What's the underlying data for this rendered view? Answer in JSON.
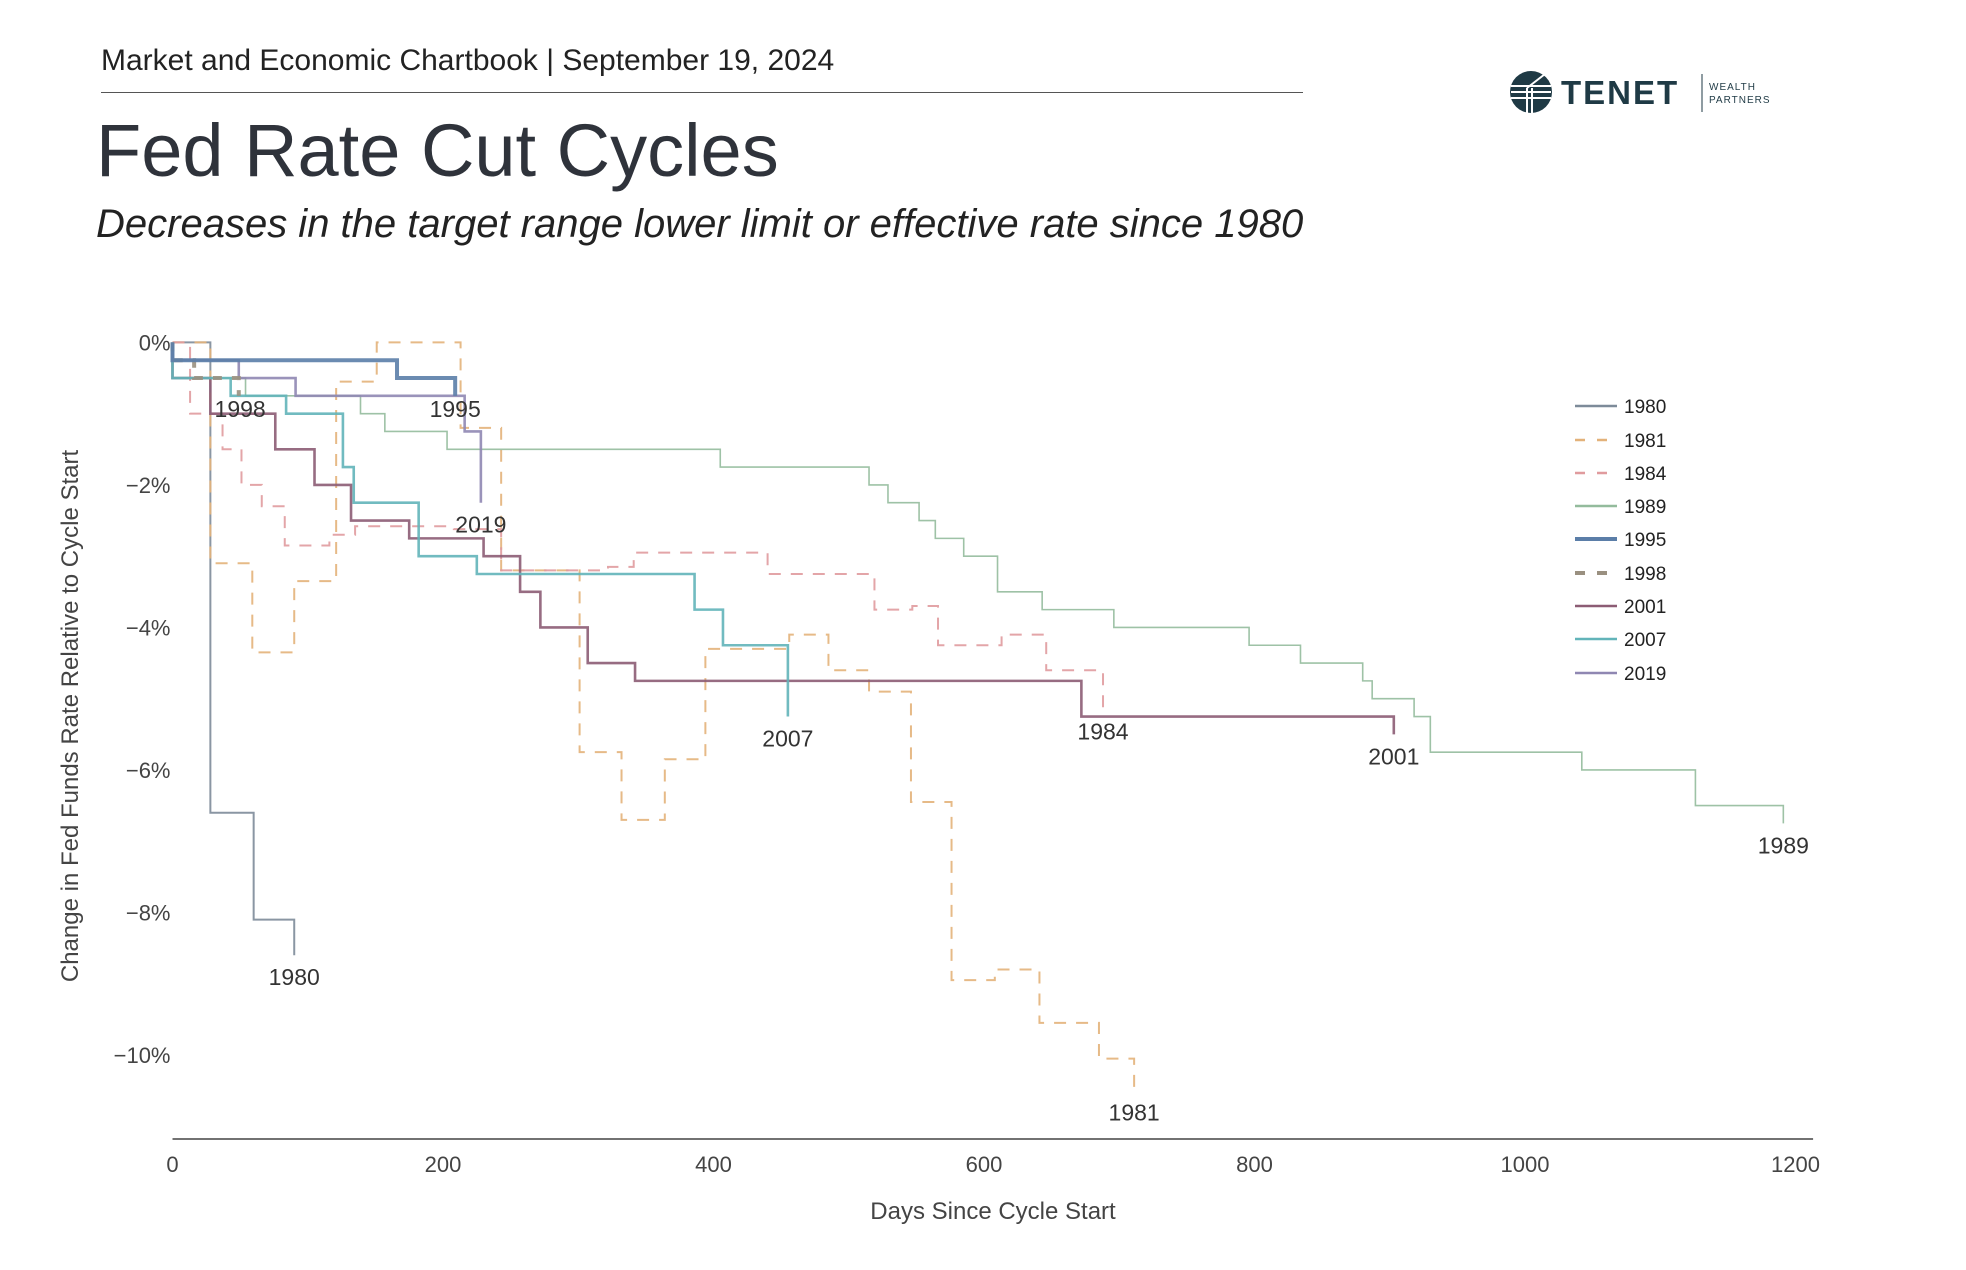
{
  "header": {
    "top_line": "Market and Economic Chartbook | September 19, 2024",
    "title": "Fed Rate Cut Cycles",
    "subtitle": "Decreases in the target range lower limit or effective rate since 1980",
    "logo_text": "TENET",
    "logo_sub_1": "WEALTH",
    "logo_sub_2": "PARTNERS",
    "logo_color": "#1f3a45"
  },
  "chart_data": {
    "type": "line",
    "step": true,
    "xlabel": "Days Since Cycle Start",
    "ylabel": "Change in Fed Funds Rate Relative to Cycle Start",
    "xlim": [
      0,
      1213
    ],
    "ylim": [
      -11.2,
      0.3
    ],
    "xticks": [
      0,
      200,
      400,
      600,
      800,
      1000,
      1200
    ],
    "xtick_labels": [
      "0",
      "200",
      "400",
      "600",
      "800",
      "1000",
      "1200"
    ],
    "yticks": [
      0,
      -2,
      -4,
      -6,
      -8,
      -10
    ],
    "ytick_labels": [
      "0%",
      "−2%",
      "−4%",
      "−6%",
      "−8%",
      "−10%"
    ],
    "grid": false,
    "legend_position": "right",
    "series": [
      {
        "name": "1980",
        "color": "#7d8b99",
        "dash": false,
        "width": 2,
        "points": [
          [
            0,
            0
          ],
          [
            28,
            -6.6
          ],
          [
            60,
            -8.1
          ],
          [
            90,
            -8.6
          ]
        ]
      },
      {
        "name": "1981",
        "color": "#e3b27a",
        "dash": true,
        "width": 2,
        "points": [
          [
            0,
            0
          ],
          [
            28,
            -3.1
          ],
          [
            59,
            -4.35
          ],
          [
            90,
            -3.35
          ],
          [
            121,
            -0.55
          ],
          [
            151,
            0
          ],
          [
            213,
            -1.2
          ],
          [
            243,
            -3.2
          ],
          [
            301,
            -5.75
          ],
          [
            332,
            -6.7
          ],
          [
            364,
            -5.85
          ],
          [
            394,
            -4.3
          ],
          [
            456,
            -4.1
          ],
          [
            485,
            -4.6
          ],
          [
            515,
            -4.9
          ],
          [
            546,
            -6.45
          ],
          [
            576,
            -8.95
          ],
          [
            608,
            -8.8
          ],
          [
            641,
            -9.55
          ],
          [
            685,
            -10.05
          ],
          [
            711,
            -10.5
          ]
        ]
      },
      {
        "name": "1984",
        "color": "#e09b9e",
        "dash": true,
        "width": 2,
        "points": [
          [
            0,
            0
          ],
          [
            13,
            -1.0
          ],
          [
            37,
            -1.5
          ],
          [
            51,
            -2.0
          ],
          [
            66,
            -2.3
          ],
          [
            83,
            -2.85
          ],
          [
            116,
            -2.7
          ],
          [
            135,
            -2.58
          ],
          [
            208,
            -2.62
          ],
          [
            243,
            -3.2
          ],
          [
            322,
            -3.15
          ],
          [
            341,
            -2.95
          ],
          [
            440,
            -3.25
          ],
          [
            519,
            -3.75
          ],
          [
            547,
            -3.7
          ],
          [
            566,
            -4.25
          ],
          [
            613,
            -4.1
          ],
          [
            646,
            -4.6
          ],
          [
            688,
            -5.15
          ]
        ]
      },
      {
        "name": "1989",
        "color": "#93bb9c",
        "dash": false,
        "width": 1.6,
        "points": [
          [
            0,
            -0.5
          ],
          [
            54,
            -0.75
          ],
          [
            139,
            -1.0
          ],
          [
            157,
            -1.25
          ],
          [
            203,
            -1.5
          ],
          [
            405,
            -1.75
          ],
          [
            515,
            -2.0
          ],
          [
            529,
            -2.25
          ],
          [
            552,
            -2.5
          ],
          [
            564,
            -2.75
          ],
          [
            585,
            -3.0
          ],
          [
            610,
            -3.5
          ],
          [
            643,
            -3.75
          ],
          [
            696,
            -4.0
          ],
          [
            796,
            -4.25
          ],
          [
            834,
            -4.5
          ],
          [
            880,
            -4.75
          ],
          [
            887,
            -5.0
          ],
          [
            918,
            -5.25
          ],
          [
            930,
            -5.75
          ],
          [
            1042,
            -6.0
          ],
          [
            1126,
            -6.5
          ],
          [
            1191,
            -6.75
          ]
        ]
      },
      {
        "name": "1995",
        "color": "#5b7ea8",
        "dash": false,
        "width": 4,
        "points": [
          [
            0,
            -0.25
          ],
          [
            166,
            -0.5
          ],
          [
            209,
            -0.75
          ]
        ]
      },
      {
        "name": "1998",
        "color": "#9a9080",
        "dash": true,
        "width": 4,
        "points": [
          [
            0,
            -0.25
          ],
          [
            16,
            -0.5
          ],
          [
            49,
            -0.75
          ]
        ]
      },
      {
        "name": "2001",
        "color": "#8c5c74",
        "dash": false,
        "width": 2.6,
        "points": [
          [
            0,
            -0.5
          ],
          [
            28,
            -1.0
          ],
          [
            76,
            -1.5
          ],
          [
            105,
            -2.0
          ],
          [
            132,
            -2.5
          ],
          [
            175,
            -2.75
          ],
          [
            230,
            -3.0
          ],
          [
            257,
            -3.5
          ],
          [
            272,
            -4.0
          ],
          [
            307,
            -4.5
          ],
          [
            342,
            -4.75
          ],
          [
            672,
            -5.25
          ],
          [
            903,
            -5.5
          ]
        ]
      },
      {
        "name": "2007",
        "color": "#62b4b9",
        "dash": false,
        "width": 2.6,
        "points": [
          [
            0,
            -0.5
          ],
          [
            43,
            -0.75
          ],
          [
            84,
            -1.0
          ],
          [
            126,
            -1.75
          ],
          [
            134,
            -2.25
          ],
          [
            182,
            -3.0
          ],
          [
            225,
            -3.25
          ],
          [
            386,
            -3.75
          ],
          [
            407,
            -4.25
          ],
          [
            455,
            -5.25
          ]
        ]
      },
      {
        "name": "2019",
        "color": "#8f87b2",
        "dash": false,
        "width": 2.6,
        "points": [
          [
            0,
            -0.25
          ],
          [
            49,
            -0.5
          ],
          [
            91,
            -0.75
          ],
          [
            216,
            -1.25
          ],
          [
            228,
            -2.25
          ]
        ]
      }
    ]
  }
}
